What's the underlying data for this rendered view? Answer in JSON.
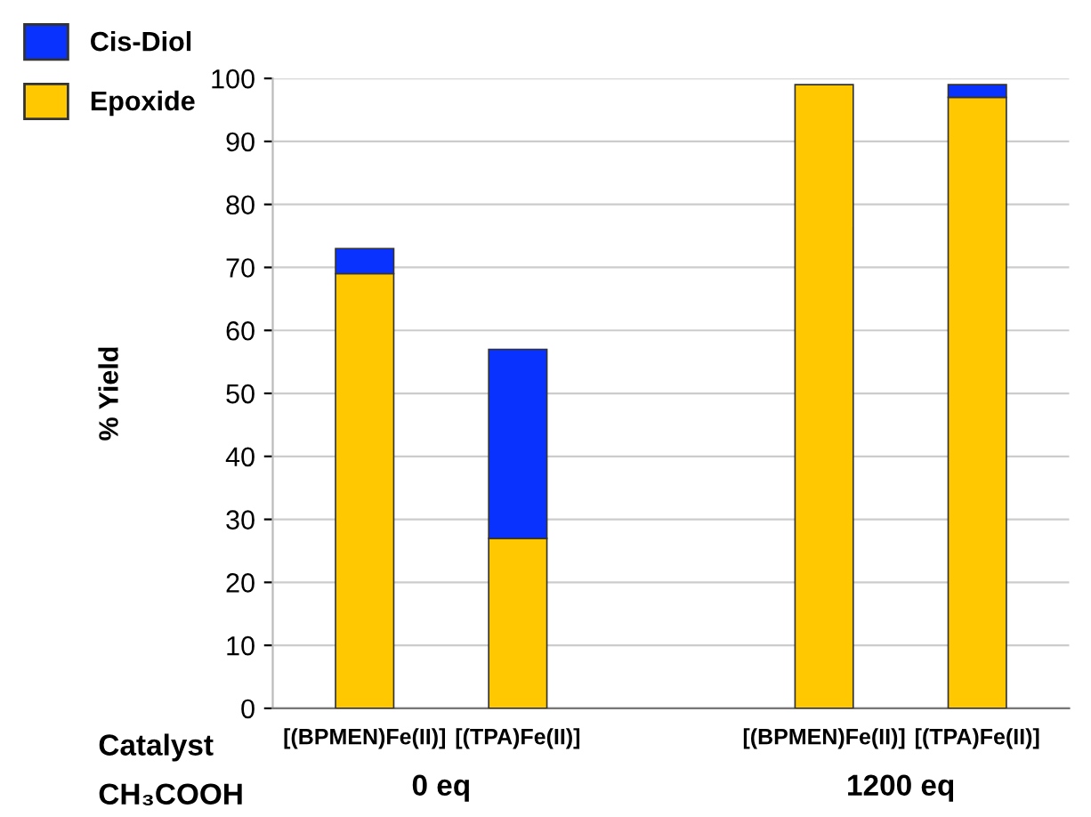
{
  "chart_data": {
    "type": "bar",
    "stacked": true,
    "ylabel": "% Yield",
    "categories": [
      "[(BPMEN)Fe(II)]",
      "[(TPA)Fe(II)]",
      null,
      "[(BPMEN)Fe(II)]",
      "[(TPA)Fe(II)]"
    ],
    "series": [
      {
        "name": "Epoxide",
        "color": "#ffc800",
        "values": [
          69,
          27,
          null,
          99,
          97
        ]
      },
      {
        "name": "Cis-Diol",
        "color": "#0a32ff",
        "values": [
          4,
          30,
          null,
          null,
          2
        ]
      }
    ],
    "ylim": [
      0,
      100
    ],
    "yticks": [
      0,
      10,
      20,
      30,
      40,
      50,
      60,
      70,
      80,
      90,
      100
    ],
    "grid": "y",
    "legend": "top left",
    "annotations": [
      "Catalyst",
      "CH₃COOH",
      "0 eq",
      "1200 eq"
    ]
  }
}
